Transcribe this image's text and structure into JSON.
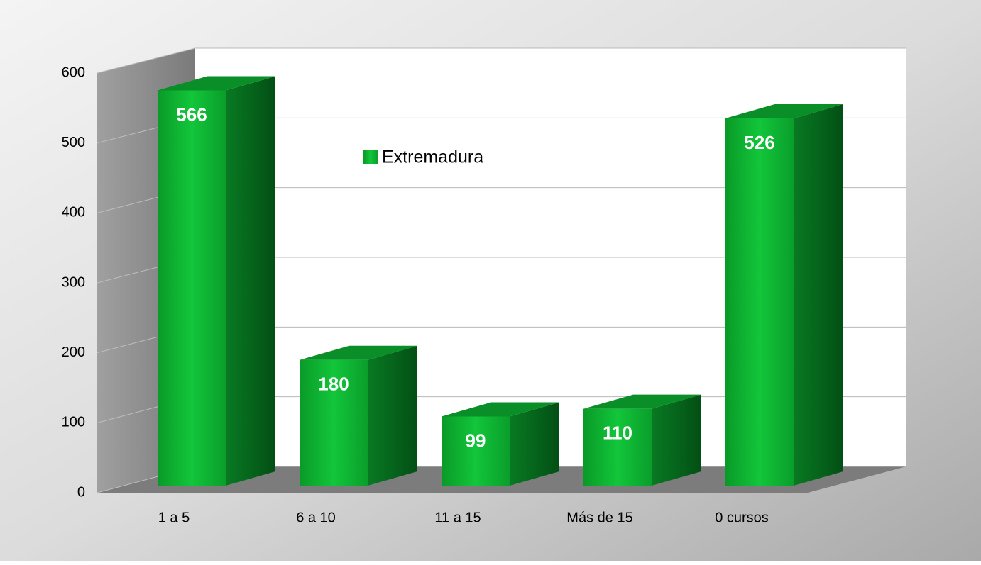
{
  "chart_data": {
    "type": "bar3d",
    "categories": [
      "1 a 5",
      "6 a 10",
      "11 a 15",
      "Más de 15",
      "0 cursos"
    ],
    "series": [
      {
        "name": "Extremadura",
        "color": "#0fae2e",
        "values": [
          566,
          180,
          99,
          110,
          526
        ]
      }
    ],
    "ylim": [
      0,
      600
    ],
    "yticks": [
      0,
      100,
      200,
      300,
      400,
      500,
      600
    ],
    "grid": true,
    "legend": "top-center"
  }
}
